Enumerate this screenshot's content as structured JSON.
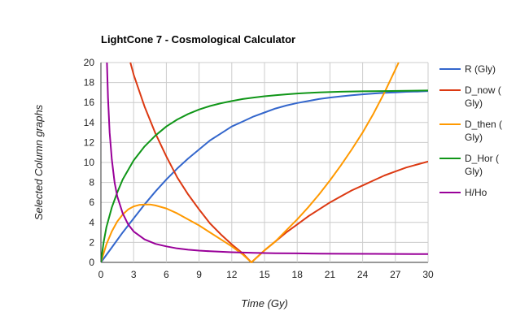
{
  "chart_data": {
    "type": "line",
    "title": "LightCone 7 - Cosmological Calculator",
    "xlabel": "Time (Gy)",
    "ylabel": "Selected Column graphs",
    "xlim": [
      0,
      30
    ],
    "ylim": [
      0,
      20
    ],
    "x_ticks": [
      0,
      3,
      6,
      9,
      12,
      15,
      18,
      21,
      24,
      27,
      30
    ],
    "y_ticks": [
      0,
      2,
      4,
      6,
      8,
      10,
      12,
      14,
      16,
      18,
      20
    ],
    "grid": true,
    "legend_position": "right",
    "series": [
      {
        "name": "R (Gly)",
        "color": "#3366cc",
        "points": [
          [
            0,
            0
          ],
          [
            1,
            1.5
          ],
          [
            2,
            3.0
          ],
          [
            3,
            4.4
          ],
          [
            4,
            5.8
          ],
          [
            5,
            7.1
          ],
          [
            6,
            8.3
          ],
          [
            7,
            9.4
          ],
          [
            8,
            10.4
          ],
          [
            9,
            11.3
          ],
          [
            10,
            12.2
          ],
          [
            11,
            12.9
          ],
          [
            12,
            13.6
          ],
          [
            13,
            14.1
          ],
          [
            14,
            14.6
          ],
          [
            15,
            15.0
          ],
          [
            16,
            15.4
          ],
          [
            17,
            15.7
          ],
          [
            18,
            15.95
          ],
          [
            19,
            16.15
          ],
          [
            20,
            16.35
          ],
          [
            21,
            16.5
          ],
          [
            22,
            16.62
          ],
          [
            23,
            16.72
          ],
          [
            24,
            16.82
          ],
          [
            25,
            16.9
          ],
          [
            26,
            16.97
          ],
          [
            27,
            17.02
          ],
          [
            28,
            17.07
          ],
          [
            29,
            17.1
          ],
          [
            30,
            17.15
          ]
        ]
      },
      {
        "name": "D_now (\nGly)",
        "color": "#dc3912",
        "points": [
          [
            2.7,
            20
          ],
          [
            3,
            18.8
          ],
          [
            4,
            15.6
          ],
          [
            5,
            12.9
          ],
          [
            6,
            10.6
          ],
          [
            7,
            8.5
          ],
          [
            8,
            6.8
          ],
          [
            9,
            5.3
          ],
          [
            10,
            3.9
          ],
          [
            11,
            2.8
          ],
          [
            12,
            1.8
          ],
          [
            13,
            0.9
          ],
          [
            13.8,
            0
          ],
          [
            14.5,
            0.7
          ],
          [
            15,
            1.2
          ],
          [
            16,
            2.1
          ],
          [
            17,
            3.0
          ],
          [
            18,
            3.8
          ],
          [
            19,
            4.6
          ],
          [
            20,
            5.3
          ],
          [
            21,
            6.0
          ],
          [
            22,
            6.6
          ],
          [
            23,
            7.2
          ],
          [
            24,
            7.7
          ],
          [
            25,
            8.2
          ],
          [
            26,
            8.7
          ],
          [
            27,
            9.1
          ],
          [
            28,
            9.5
          ],
          [
            29,
            9.8
          ],
          [
            30,
            10.1
          ]
        ]
      },
      {
        "name": "D_then (\nGly)",
        "color": "#ff9900",
        "points": [
          [
            0,
            0
          ],
          [
            0.5,
            1.8
          ],
          [
            1,
            3.1
          ],
          [
            1.5,
            4.1
          ],
          [
            2,
            4.8
          ],
          [
            2.5,
            5.3
          ],
          [
            3,
            5.6
          ],
          [
            3.5,
            5.75
          ],
          [
            4,
            5.8
          ],
          [
            4.5,
            5.8
          ],
          [
            5,
            5.7
          ],
          [
            6,
            5.4
          ],
          [
            7,
            4.9
          ],
          [
            8,
            4.3
          ],
          [
            9,
            3.7
          ],
          [
            10,
            3.0
          ],
          [
            11,
            2.3
          ],
          [
            12,
            1.6
          ],
          [
            13,
            0.8
          ],
          [
            13.8,
            0
          ],
          [
            14.5,
            0.7
          ],
          [
            15,
            1.2
          ],
          [
            16,
            2.1
          ],
          [
            17,
            3.2
          ],
          [
            18,
            4.3
          ],
          [
            19,
            5.5
          ],
          [
            20,
            6.8
          ],
          [
            21,
            8.2
          ],
          [
            22,
            9.7
          ],
          [
            23,
            11.3
          ],
          [
            24,
            13.0
          ],
          [
            25,
            14.9
          ],
          [
            26,
            17.0
          ],
          [
            27,
            19.3
          ],
          [
            27.3,
            20
          ]
        ]
      },
      {
        "name": "D_Hor (\nGly)",
        "color": "#109618",
        "points": [
          [
            0,
            0
          ],
          [
            0.25,
            2.0
          ],
          [
            0.5,
            3.5
          ],
          [
            1,
            5.5
          ],
          [
            1.5,
            7.0
          ],
          [
            2,
            8.3
          ],
          [
            3,
            10.2
          ],
          [
            4,
            11.6
          ],
          [
            5,
            12.7
          ],
          [
            6,
            13.6
          ],
          [
            7,
            14.3
          ],
          [
            8,
            14.85
          ],
          [
            9,
            15.3
          ],
          [
            10,
            15.65
          ],
          [
            11,
            15.93
          ],
          [
            12,
            16.15
          ],
          [
            13,
            16.35
          ],
          [
            14,
            16.5
          ],
          [
            15,
            16.63
          ],
          [
            16,
            16.73
          ],
          [
            17,
            16.82
          ],
          [
            18,
            16.9
          ],
          [
            19,
            16.96
          ],
          [
            20,
            17.01
          ],
          [
            22,
            17.08
          ],
          [
            24,
            17.12
          ],
          [
            26,
            17.15
          ],
          [
            28,
            17.17
          ],
          [
            30,
            17.2
          ]
        ]
      },
      {
        "name": "H/Ho",
        "color": "#990099",
        "points": [
          [
            0.55,
            20
          ],
          [
            0.65,
            16.5
          ],
          [
            0.8,
            13.0
          ],
          [
            1,
            10.3
          ],
          [
            1.25,
            8.0
          ],
          [
            1.5,
            6.6
          ],
          [
            2,
            4.9
          ],
          [
            2.5,
            3.8
          ],
          [
            3,
            3.1
          ],
          [
            4,
            2.3
          ],
          [
            5,
            1.85
          ],
          [
            6,
            1.6
          ],
          [
            7,
            1.4
          ],
          [
            8,
            1.27
          ],
          [
            9,
            1.18
          ],
          [
            10,
            1.11
          ],
          [
            12,
            1.02
          ],
          [
            14,
            0.96
          ],
          [
            16,
            0.92
          ],
          [
            18,
            0.9
          ],
          [
            20,
            0.88
          ],
          [
            22,
            0.86
          ],
          [
            25,
            0.85
          ],
          [
            30,
            0.83
          ]
        ]
      }
    ]
  }
}
